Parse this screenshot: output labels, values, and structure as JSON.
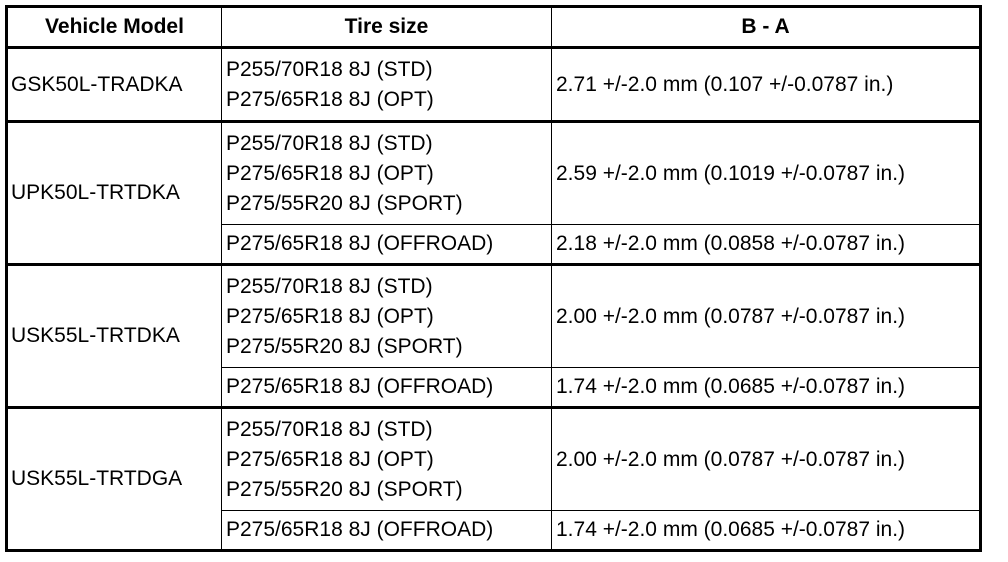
{
  "table": {
    "header": [
      "Vehicle Model",
      "Tire size",
      "B - A"
    ],
    "groups": [
      {
        "model": "GSK50L-TRADKA",
        "rows": [
          {
            "tires": [
              "P255/70R18 8J (STD)",
              "P275/65R18 8J (OPT)"
            ],
            "spec": "2.71 +/-2.0 mm (0.107 +/-0.0787 in.)"
          }
        ]
      },
      {
        "model": "UPK50L-TRTDKA",
        "rows": [
          {
            "tires": [
              "P255/70R18 8J (STD)",
              "P275/65R18 8J (OPT)",
              "P275/55R20 8J (SPORT)"
            ],
            "spec": "2.59 +/-2.0 mm (0.1019 +/-0.0787 in.)"
          },
          {
            "tires": [
              "P275/65R18 8J (OFFROAD)"
            ],
            "spec": "2.18 +/-2.0 mm (0.0858 +/-0.0787 in.)"
          }
        ]
      },
      {
        "model": "USK55L-TRTDKA",
        "rows": [
          {
            "tires": [
              "P255/70R18 8J (STD)",
              "P275/65R18 8J (OPT)",
              "P275/55R20 8J (SPORT)"
            ],
            "spec": "2.00 +/-2.0 mm (0.0787 +/-0.0787 in.)"
          },
          {
            "tires": [
              "P275/65R18 8J (OFFROAD)"
            ],
            "spec": "1.74 +/-2.0 mm (0.0685 +/-0.0787 in.)"
          }
        ]
      },
      {
        "model": "USK55L-TRTDGA",
        "rows": [
          {
            "tires": [
              "P255/70R18 8J (STD)",
              "P275/65R18 8J (OPT)",
              "P275/55R20 8J (SPORT)"
            ],
            "spec": "2.00 +/-2.0 mm (0.0787 +/-0.0787 in.)"
          },
          {
            "tires": [
              "P275/65R18 8J (OFFROAD)"
            ],
            "spec": "1.74 +/-2.0 mm (0.0685 +/-0.0787 in.)"
          }
        ]
      }
    ]
  }
}
